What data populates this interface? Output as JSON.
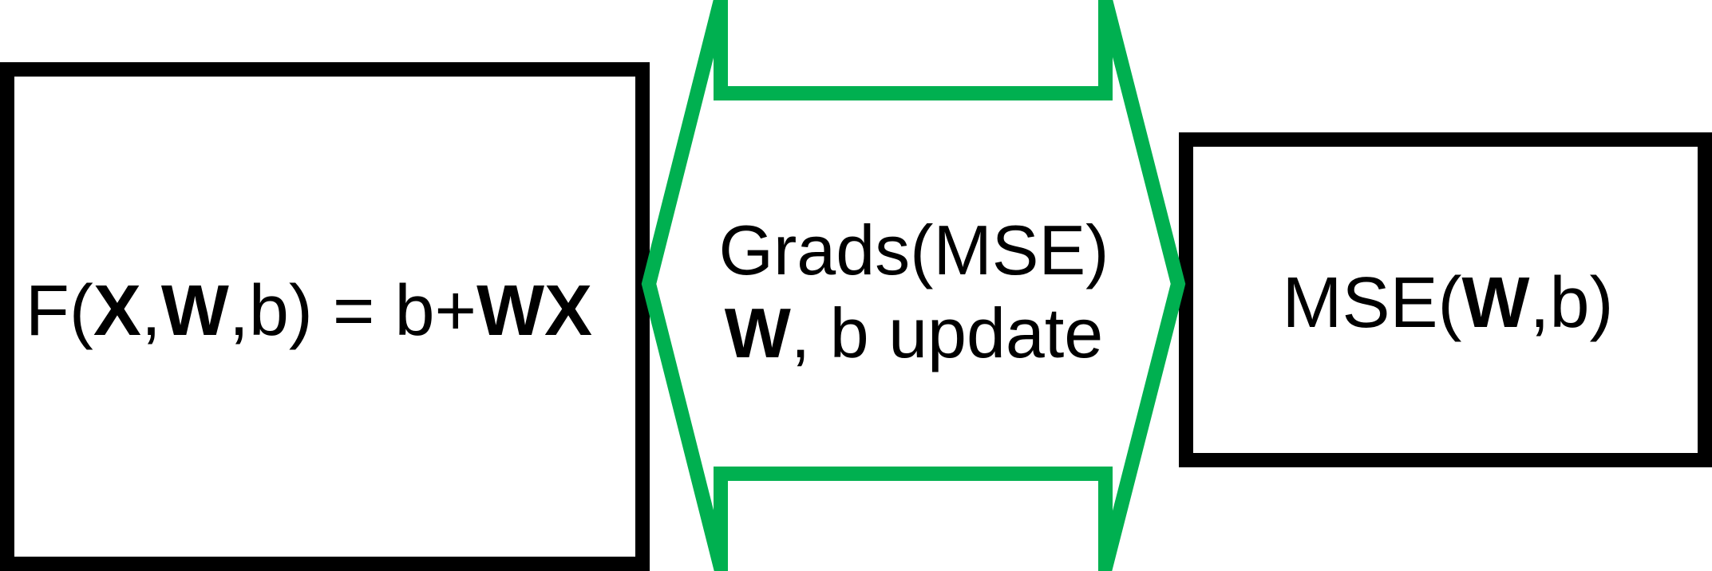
{
  "model": {
    "prefix": "F(",
    "x": "X",
    "sep1": ",",
    "w": "W",
    "suffix": ",b) = b+",
    "wx": "WX"
  },
  "update_arrow": {
    "line1": "Grads(MSE)",
    "w": "W",
    "line2_rest": ", b update",
    "color": "#00b050"
  },
  "loss": {
    "prefix": "MSE(",
    "w": "W",
    "suffix": ",b)"
  }
}
